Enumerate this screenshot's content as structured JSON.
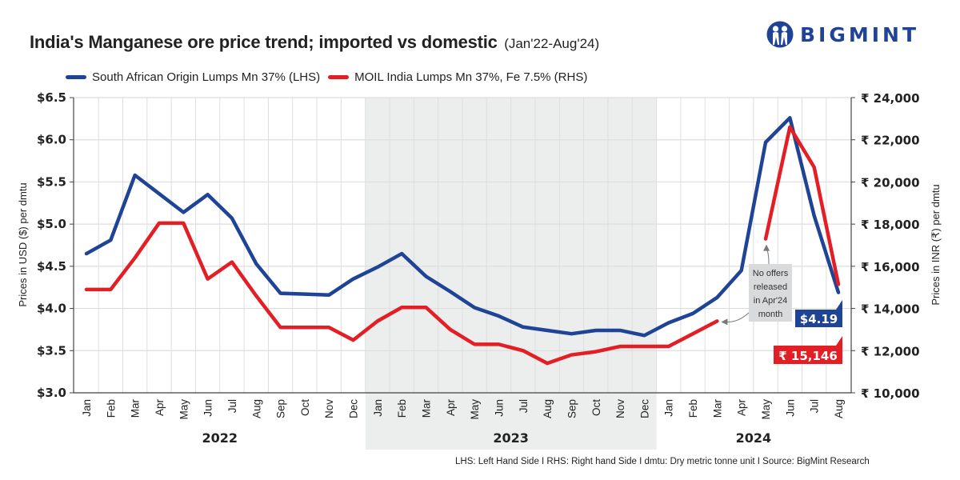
{
  "header": {
    "title": "India's Manganese ore price trend; imported vs domestic",
    "subtitle": "(Jan'22-Aug'24)",
    "brand": "BIGMINT",
    "logo_icon": "bigmint-people-logo-icon"
  },
  "footer": "LHS: Left Hand Side  I  RHS: Right hand Side  I  dmtu: Dry metric tonne unit  I  Source: BigMint Research",
  "colors": {
    "blue": "#1f4496",
    "red": "#e31e24",
    "shade": "#eceded",
    "grid": "#dedede",
    "note_bg": "#d9dadb"
  },
  "chart_data": {
    "type": "line",
    "title": "India's Manganese ore price trend; imported vs domestic",
    "subtitle": "(Jan'22-Aug'24)",
    "x": [
      "Jan",
      "Feb",
      "Mar",
      "Apr",
      "May",
      "Jun",
      "Jul",
      "Aug",
      "Sep",
      "Oct",
      "Nov",
      "Dec",
      "Jan",
      "Feb",
      "Mar",
      "Apr",
      "May",
      "Jun",
      "Jul",
      "Aug",
      "Sep",
      "Oct",
      "Nov",
      "Dec",
      "Jan",
      "Feb",
      "Mar",
      "Apr",
      "May",
      "Jun",
      "Jul",
      "Aug"
    ],
    "year_groups": [
      {
        "label": "2022",
        "start": 0,
        "end": 11,
        "shaded": false
      },
      {
        "label": "2023",
        "start": 12,
        "end": 23,
        "shaded": true
      },
      {
        "label": "2024",
        "start": 24,
        "end": 31,
        "shaded": false
      }
    ],
    "series": [
      {
        "name": "South African Origin Lumps Mn 37% (LHS)",
        "axis": "left",
        "color": "#1f4496",
        "values": [
          4.65,
          4.81,
          5.58,
          5.36,
          5.14,
          5.35,
          5.07,
          4.53,
          4.18,
          4.17,
          4.16,
          4.35,
          4.49,
          4.65,
          4.38,
          4.2,
          4.01,
          3.91,
          3.78,
          3.74,
          3.7,
          3.74,
          3.74,
          3.68,
          3.83,
          3.94,
          4.13,
          4.45,
          5.97,
          6.26,
          5.1,
          4.19
        ],
        "end_label": "$4.19"
      },
      {
        "name": "MOIL India Lumps Mn 37%, Fe 7.5% (RHS)",
        "axis": "right",
        "color": "#e31e24",
        "values": [
          14900,
          14900,
          16400,
          18050,
          18050,
          15400,
          16200,
          14600,
          13100,
          13100,
          13100,
          12500,
          13400,
          14050,
          14050,
          13000,
          12300,
          12300,
          12000,
          11400,
          11800,
          11950,
          12200,
          12200,
          12200,
          12800,
          13400,
          null,
          17300,
          22600,
          20700,
          15146
        ],
        "end_label": "₹ 15,146"
      }
    ],
    "y_left": {
      "label": "Prices in USD ($) per dmtu",
      "ylim": [
        3.0,
        6.5
      ],
      "ticks": [
        3.0,
        3.5,
        4.0,
        4.5,
        5.0,
        5.5,
        6.0,
        6.5
      ],
      "tick_labels": [
        "$3.0",
        "$3.5",
        "$4.0",
        "$4.5",
        "$5.0",
        "$5.5",
        "$6.0",
        "$6.5"
      ]
    },
    "y_right": {
      "label": "Prices in INR (₹) per dmtu",
      "ylim": [
        10000,
        24000
      ],
      "ticks": [
        10000,
        12000,
        14000,
        16000,
        18000,
        20000,
        22000,
        24000
      ],
      "tick_labels": [
        "₹ 10,000",
        "₹ 12,000",
        "₹ 14,000",
        "₹ 16,000",
        "₹ 18,000",
        "₹ 20,000",
        "₹ 22,000",
        "₹ 24,000"
      ]
    },
    "annotation": {
      "lines": [
        "No offers",
        "released",
        "in Apr'24",
        "month"
      ],
      "points_to": [
        "Mar'24 red",
        "May'24 red"
      ]
    },
    "grid": true,
    "legend": "top-left"
  }
}
